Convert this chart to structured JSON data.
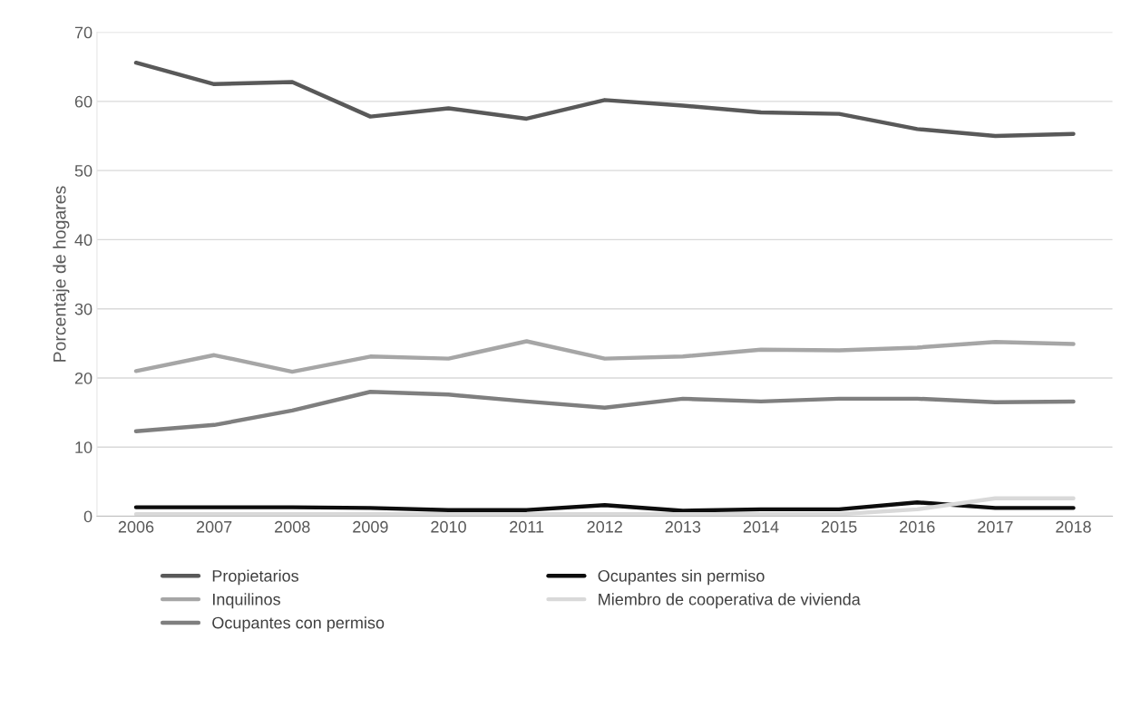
{
  "chart_data": {
    "type": "line",
    "ylabel": "Porcentaje de hogares",
    "categories": [
      "2006",
      "2007",
      "2008",
      "2009",
      "2010",
      "2011",
      "2012",
      "2013",
      "2014",
      "2015",
      "2016",
      "2017",
      "2018"
    ],
    "series": [
      {
        "name": "Propietarios",
        "color": "#595959",
        "values": [
          65.6,
          62.5,
          62.8,
          57.8,
          59.0,
          57.5,
          60.2,
          59.4,
          58.4,
          58.2,
          56.0,
          55.0,
          55.3
        ]
      },
      {
        "name": "Inquilinos",
        "color": "#a6a6a6",
        "values": [
          21.0,
          23.3,
          20.9,
          23.1,
          22.8,
          25.3,
          22.8,
          23.1,
          24.1,
          24.0,
          24.4,
          25.2,
          24.9
        ]
      },
      {
        "name": "Ocupantes con permiso",
        "color": "#7f7f7f",
        "values": [
          12.3,
          13.2,
          15.3,
          18.0,
          17.6,
          16.6,
          15.7,
          17.0,
          16.6,
          17.0,
          17.0,
          16.5,
          16.6
        ]
      },
      {
        "name": "Ocupantes sin permiso",
        "color": "#0d0d0d",
        "values": [
          1.3,
          1.3,
          1.3,
          1.2,
          0.9,
          0.9,
          1.6,
          0.8,
          1.0,
          1.0,
          2.0,
          1.2,
          1.2
        ]
      },
      {
        "name": "Miembro de cooperativa de vivienda",
        "color": "#d9d9d9",
        "values": [
          0.3,
          0.3,
          0.3,
          0.3,
          0.3,
          0.3,
          0.3,
          0.3,
          0.3,
          0.3,
          1.0,
          2.6,
          2.6
        ]
      }
    ],
    "ylim": [
      0,
      70
    ],
    "yticks": [
      0,
      10,
      20,
      30,
      40,
      50,
      60,
      70
    ],
    "grid": "y",
    "legend": "bottom",
    "marker": "none",
    "line_style": "solid"
  }
}
